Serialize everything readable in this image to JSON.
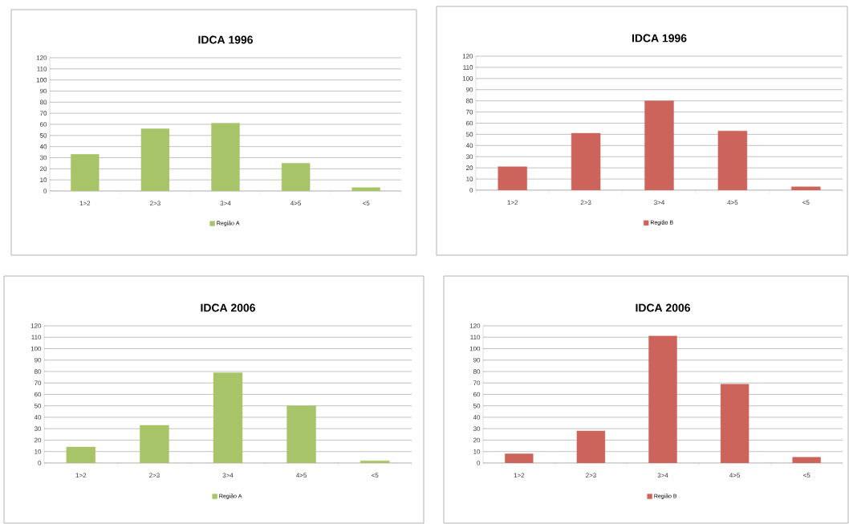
{
  "chart_data": [
    {
      "type": "bar",
      "title": "IDCA 1996",
      "categories": [
        "1>2",
        "2>3",
        "3>4",
        "4>5",
        "<5"
      ],
      "ylim": [
        0,
        120
      ],
      "yticks": [
        0,
        10,
        20,
        30,
        40,
        50,
        60,
        70,
        80,
        90,
        100,
        110,
        120
      ],
      "grid": "y",
      "legend": "bottom",
      "series": [
        {
          "name": "Região A",
          "color": "#a8c468",
          "values": [
            33,
            56,
            61,
            25,
            3
          ]
        }
      ]
    },
    {
      "type": "bar",
      "title": "IDCA 1996",
      "categories": [
        "1>2",
        "2>3",
        "3>4",
        "4>5",
        "<5"
      ],
      "ylim": [
        0,
        120
      ],
      "yticks": [
        0,
        10,
        20,
        30,
        40,
        50,
        60,
        70,
        80,
        90,
        100,
        110,
        120
      ],
      "grid": "y",
      "legend": "bottom",
      "series": [
        {
          "name": "Região B",
          "color": "#cd645c",
          "values": [
            21,
            51,
            80,
            53,
            3
          ]
        }
      ]
    },
    {
      "type": "bar",
      "title": "IDCA 2006",
      "categories": [
        "1>2",
        "2>3",
        "3>4",
        "4>5",
        "<5"
      ],
      "ylim": [
        0,
        120
      ],
      "yticks": [
        0,
        10,
        20,
        30,
        40,
        50,
        60,
        70,
        80,
        90,
        100,
        110,
        120
      ],
      "grid": "y",
      "legend": "bottom",
      "series": [
        {
          "name": "Região A",
          "color": "#a8c468",
          "values": [
            14,
            33,
            79,
            50,
            2
          ]
        }
      ]
    },
    {
      "type": "bar",
      "title": "IDCA 2006",
      "categories": [
        "1>2",
        "2>3",
        "3>4",
        "4>5",
        "<5"
      ],
      "ylim": [
        0,
        120
      ],
      "yticks": [
        0,
        10,
        20,
        30,
        40,
        50,
        60,
        70,
        80,
        90,
        100,
        110,
        120
      ],
      "grid": "y",
      "legend": "bottom",
      "series": [
        {
          "name": "Região B",
          "color": "#cd645c",
          "values": [
            8,
            28,
            111,
            69,
            5
          ]
        }
      ]
    }
  ]
}
